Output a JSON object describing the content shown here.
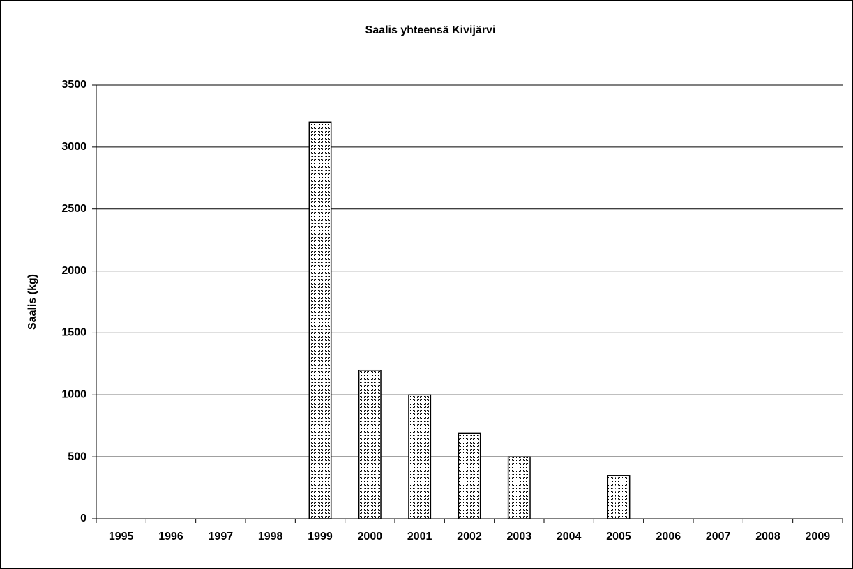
{
  "chart_data": {
    "type": "bar",
    "title": "Saalis yhteensä Kivijärvi",
    "y_label": "Saalis (kg)",
    "categories": [
      "1995",
      "1996",
      "1997",
      "1998",
      "1999",
      "2000",
      "2001",
      "2002",
      "2003",
      "2004",
      "2005",
      "2006",
      "2007",
      "2008",
      "2009"
    ],
    "values": [
      null,
      null,
      null,
      null,
      3200,
      1200,
      1000,
      690,
      500,
      null,
      350,
      null,
      null,
      null,
      null
    ],
    "color": "#ffffff",
    "ylim": [
      0,
      3500
    ],
    "yticks": [
      0,
      500,
      1000,
      1500,
      2000,
      2500,
      3000,
      3500
    ],
    "grid": true
  }
}
